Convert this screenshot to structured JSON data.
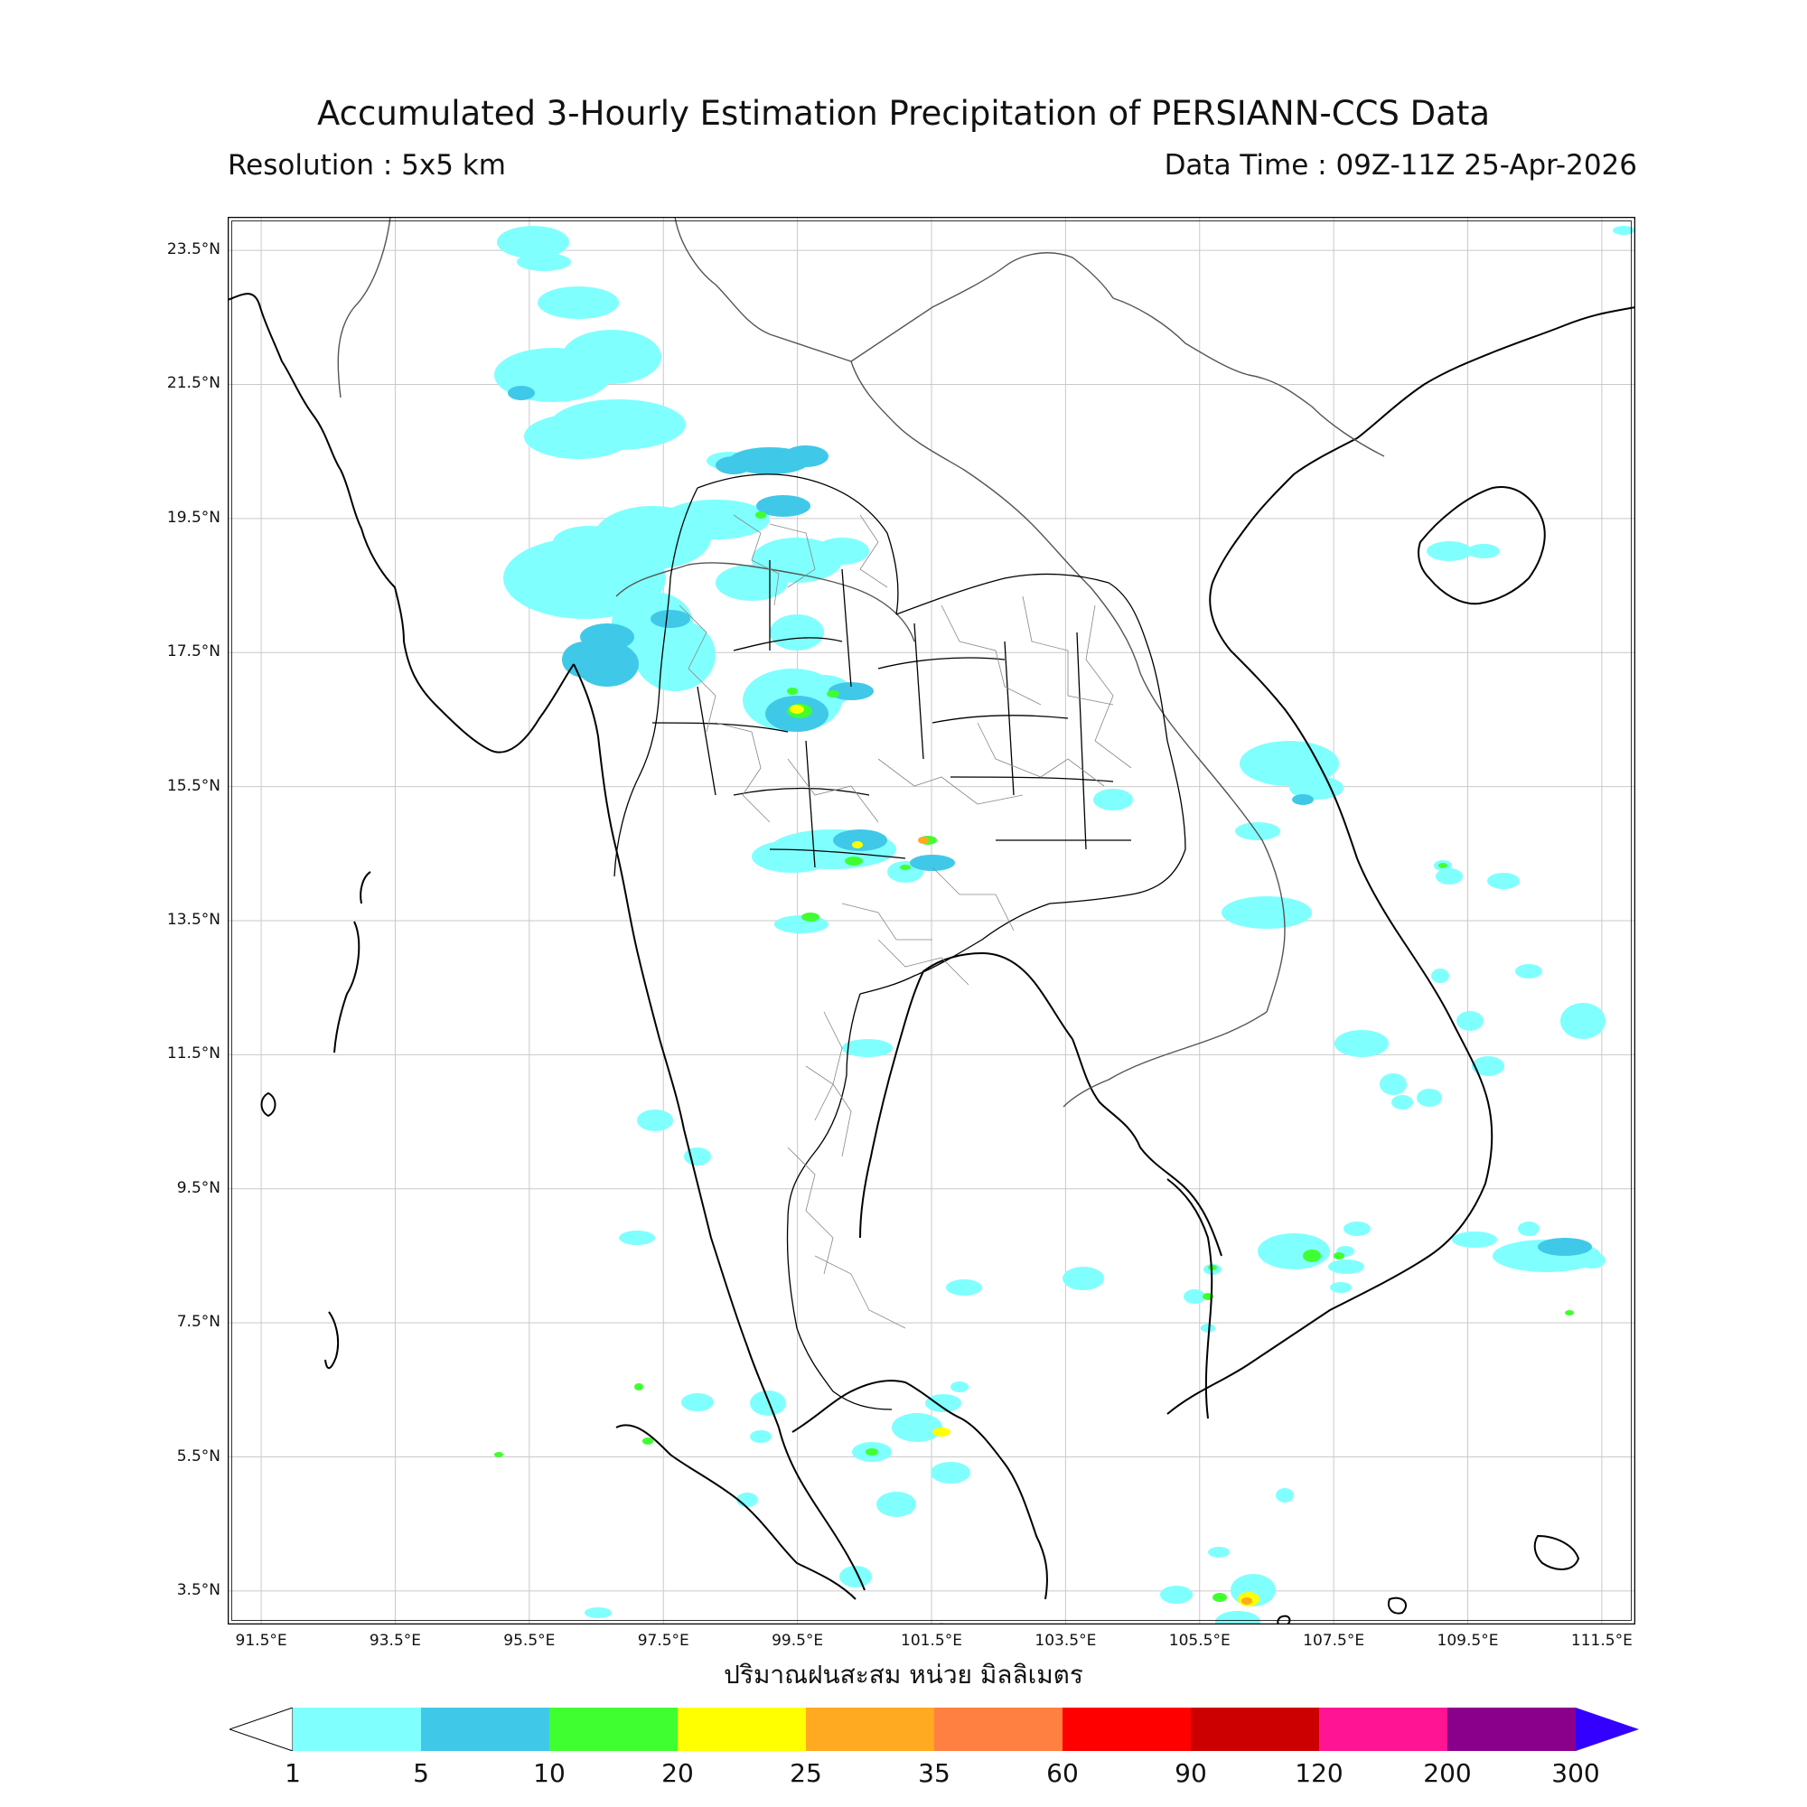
{
  "header": {
    "title": "Accumulated 3-Hourly Estimation Precipitation of PERSIANN-CCS Data",
    "resolution": "Resolution : 5x5 km",
    "data_time": "Data Time : 09Z-11Z 25-Apr-2026"
  },
  "axes": {
    "x_ticks": [
      "91.5°E",
      "93.5°E",
      "95.5°E",
      "97.5°E",
      "99.5°E",
      "101.5°E",
      "103.5°E",
      "105.5°E",
      "107.5°E",
      "109.5°E",
      "111.5°E"
    ],
    "y_ticks": [
      "23.5°N",
      "21.5°N",
      "19.5°N",
      "17.5°N",
      "15.5°N",
      "13.5°N",
      "11.5°N",
      "9.5°N",
      "7.5°N",
      "5.5°N",
      "3.5°N"
    ],
    "x_title": "ปริมาณฝนสะสม หน่วย มิลลิเมตร",
    "lon_range": [
      91,
      112
    ],
    "lat_range": [
      3,
      24
    ],
    "grid": true
  },
  "colorbar": {
    "levels": [
      "1",
      "5",
      "10",
      "20",
      "25",
      "35",
      "60",
      "90",
      "120",
      "200",
      "300"
    ],
    "colors": [
      "#80ffff",
      "#40c8e8",
      "#40ff30",
      "#ffff00",
      "#ffaa20",
      "#ff8040",
      "#ff0000",
      "#cc0000",
      "#ff1493",
      "#8b008b"
    ],
    "over_color": "#3300ff",
    "under_color": "#ffffff"
  }
}
